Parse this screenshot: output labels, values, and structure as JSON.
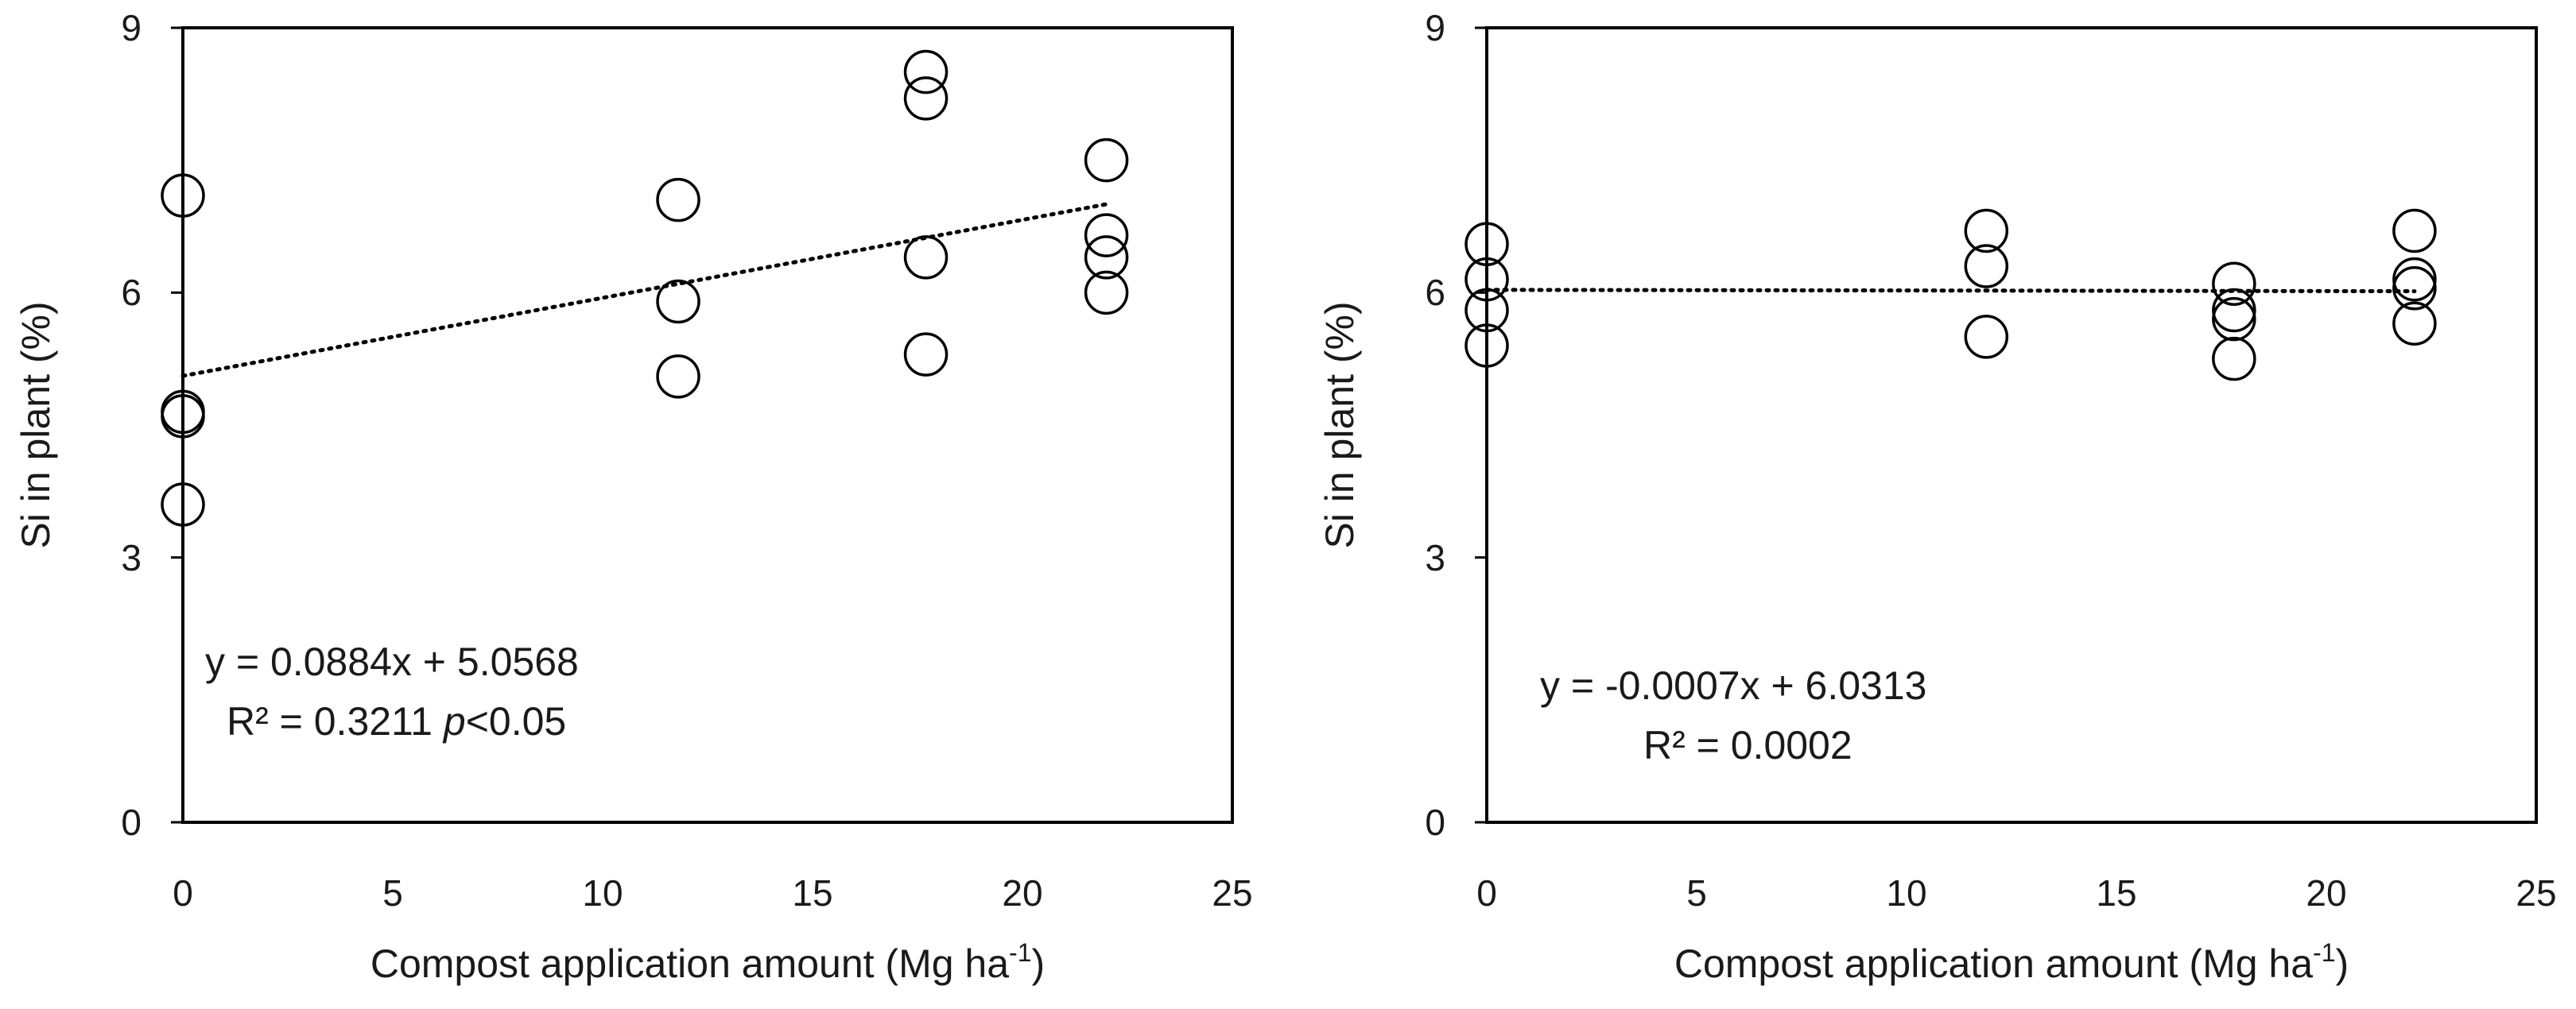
{
  "chart_data": [
    {
      "type": "scatter",
      "xlabel": "Compost application amount (Mg ha",
      "xlabel_sup": "-1",
      "xlabel_close": ")",
      "ylabel": "Si in plant (%)",
      "xlim": [
        0,
        25
      ],
      "ylim": [
        0,
        9
      ],
      "xticks": [
        "0",
        "5",
        "10",
        "15",
        "20",
        "25"
      ],
      "yticks": [
        "0",
        "3",
        "6",
        "9"
      ],
      "points": [
        {
          "x": 0,
          "y": 7.1
        },
        {
          "x": 0,
          "y": 4.65
        },
        {
          "x": 0,
          "y": 4.6
        },
        {
          "x": 0,
          "y": 3.6
        },
        {
          "x": 11.8,
          "y": 7.05
        },
        {
          "x": 11.8,
          "y": 5.9
        },
        {
          "x": 11.8,
          "y": 5.05
        },
        {
          "x": 17.7,
          "y": 8.5
        },
        {
          "x": 17.7,
          "y": 8.2
        },
        {
          "x": 17.7,
          "y": 6.4
        },
        {
          "x": 17.7,
          "y": 5.3
        },
        {
          "x": 22,
          "y": 7.5
        },
        {
          "x": 22,
          "y": 6.65
        },
        {
          "x": 22,
          "y": 6.4
        },
        {
          "x": 22,
          "y": 6.0
        }
      ],
      "trendline": {
        "slope": 0.0884,
        "intercept": 5.0568,
        "x_range": [
          0,
          22
        ],
        "style": "dotted"
      },
      "equation": "y = 0.0884x + 5.0568",
      "r2": "R² = 0.3211",
      "p_label": "p",
      "p_value": "<0.05"
    },
    {
      "type": "scatter",
      "xlabel": "Compost application amount (Mg ha",
      "xlabel_sup": "-1",
      "xlabel_close": ")",
      "ylabel": "Si in plant (%)",
      "xlim": [
        0,
        25
      ],
      "ylim": [
        0,
        9
      ],
      "xticks": [
        "0",
        "5",
        "10",
        "15",
        "20",
        "25"
      ],
      "yticks": [
        "0",
        "3",
        "6",
        "9"
      ],
      "points": [
        {
          "x": 0,
          "y": 6.55
        },
        {
          "x": 0,
          "y": 6.15
        },
        {
          "x": 0,
          "y": 5.8
        },
        {
          "x": 0,
          "y": 5.4
        },
        {
          "x": 11.9,
          "y": 6.7
        },
        {
          "x": 11.9,
          "y": 6.3
        },
        {
          "x": 11.9,
          "y": 5.5
        },
        {
          "x": 17.8,
          "y": 6.1
        },
        {
          "x": 17.8,
          "y": 5.8
        },
        {
          "x": 17.8,
          "y": 5.7
        },
        {
          "x": 17.8,
          "y": 5.25
        },
        {
          "x": 22.1,
          "y": 6.7
        },
        {
          "x": 22.1,
          "y": 6.15
        },
        {
          "x": 22.1,
          "y": 6.05
        },
        {
          "x": 22.1,
          "y": 5.65
        }
      ],
      "trendline": {
        "slope": -0.0007,
        "intercept": 6.0313,
        "x_range": [
          0,
          22.1
        ],
        "style": "dotted"
      },
      "equation": "y = -0.0007x + 6.0313",
      "r2": "R² = 0.0002"
    }
  ]
}
